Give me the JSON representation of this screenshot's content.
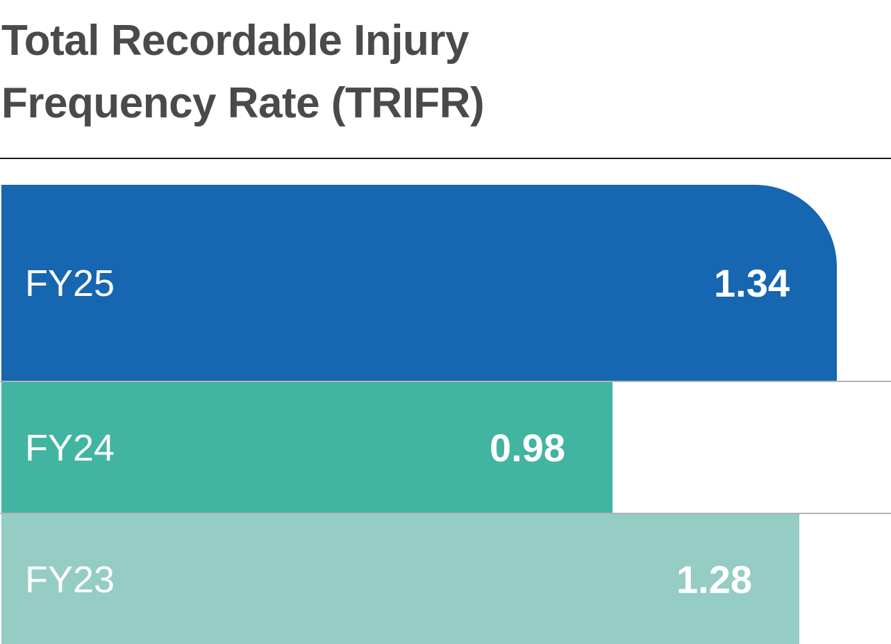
{
  "chart_data": {
    "type": "bar",
    "orientation": "horizontal",
    "title_lines": [
      "Total Recordable Injury",
      "Frequency Rate (TRIFR)"
    ],
    "categories": [
      "FY25",
      "FY24",
      "FY23"
    ],
    "values": [
      1.34,
      0.98,
      1.28
    ],
    "value_labels": [
      "1.34",
      "0.98",
      "1.28"
    ],
    "colors": [
      "#1666b1",
      "#41b4a2",
      "#95ccc4"
    ],
    "xlim": [
      0,
      1.425
    ],
    "grid": false,
    "legend": "none"
  },
  "colors": {
    "title": "#4a4a4c",
    "rule": "#1e1e1e",
    "separator": "#b4b4b4",
    "label_text": "#ffffff"
  }
}
